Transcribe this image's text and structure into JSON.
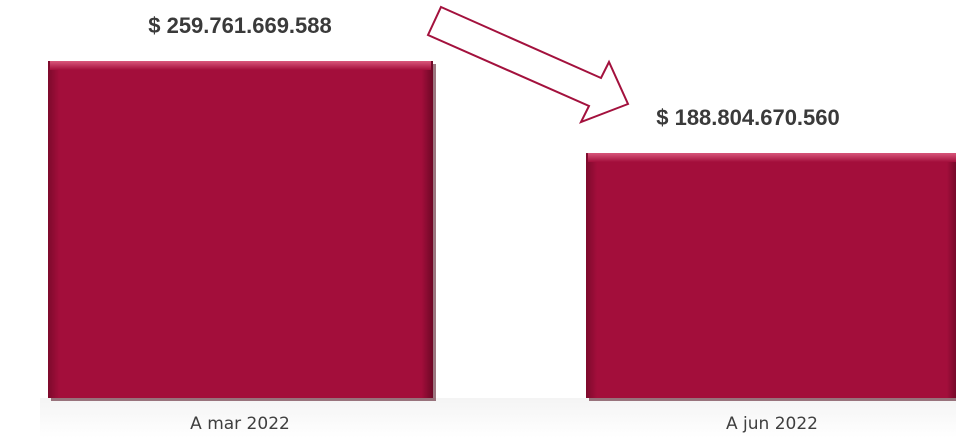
{
  "chart_data": {
    "type": "bar",
    "categories": [
      "A mar 2022",
      "A jun 2022"
    ],
    "values": [
      259761669588,
      188804670560
    ],
    "data_labels": [
      "$ 259.761.669.588",
      "$ 188.804.670.560"
    ],
    "bar_color": "#a50d3a",
    "arrow": "decrease from first to second bar",
    "title": "",
    "xlabel": "",
    "ylabel": "",
    "grid": false,
    "legend": "none"
  }
}
